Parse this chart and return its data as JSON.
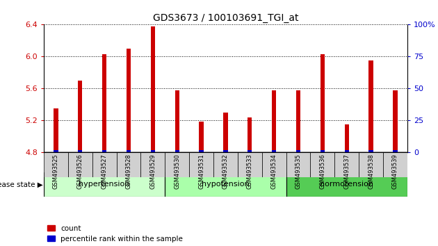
{
  "title": "GDS3673 / 100103691_TGI_at",
  "samples": [
    "GSM493525",
    "GSM493526",
    "GSM493527",
    "GSM493528",
    "GSM493529",
    "GSM493530",
    "GSM493531",
    "GSM493532",
    "GSM493533",
    "GSM493534",
    "GSM493535",
    "GSM493536",
    "GSM493537",
    "GSM493538",
    "GSM493539"
  ],
  "count_values": [
    5.35,
    5.7,
    6.03,
    6.1,
    6.38,
    5.58,
    5.19,
    5.3,
    5.24,
    5.58,
    5.58,
    6.03,
    5.15,
    5.95,
    5.58
  ],
  "percentile_values": [
    0.03,
    0.03,
    0.03,
    0.03,
    0.03,
    0.03,
    0.03,
    0.03,
    0.03,
    0.03,
    0.03,
    0.03,
    0.03,
    0.03,
    0.03
  ],
  "base_value": 4.8,
  "ylim": [
    4.8,
    6.4
  ],
  "yticks": [
    4.8,
    5.2,
    5.6,
    6.0,
    6.4
  ],
  "right_yticks": [
    0,
    25,
    50,
    75,
    100
  ],
  "right_ylim": [
    0,
    100
  ],
  "bar_color": "#cc0000",
  "percentile_color": "#0000cc",
  "groups": [
    {
      "label": "hypertension",
      "start": 0,
      "end": 5
    },
    {
      "label": "hypotension",
      "start": 5,
      "end": 10
    },
    {
      "label": "normotension",
      "start": 10,
      "end": 15
    }
  ],
  "group_colors": [
    "#ccffcc",
    "#aaffaa",
    "#55cc55"
  ],
  "group_label": "disease state",
  "legend_count_label": "count",
  "legend_percentile_label": "percentile rank within the sample",
  "bar_width": 0.18,
  "tick_label_color_left": "#cc0000",
  "tick_label_color_right": "#0000cc",
  "right_tick_labels": [
    "0",
    "25",
    "50",
    "75",
    "100%"
  ]
}
